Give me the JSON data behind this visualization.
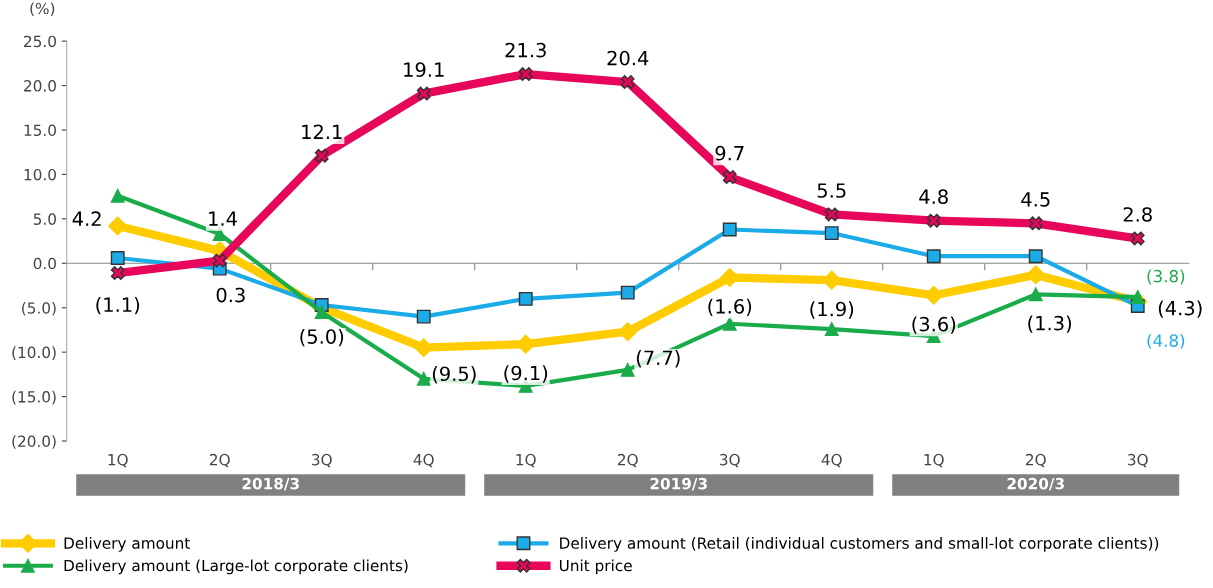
{
  "chart_data": {
    "type": "line",
    "ylabel": "(%)",
    "categories": [
      "1Q",
      "2Q",
      "3Q",
      "4Q",
      "1Q",
      "2Q",
      "3Q",
      "4Q",
      "1Q",
      "2Q",
      "3Q"
    ],
    "ylim": [
      -20,
      25
    ],
    "yticks": [
      {
        "value": -20,
        "label": "(20.0)"
      },
      {
        "value": -15,
        "label": "(15.0)"
      },
      {
        "value": -10,
        "label": "(10.0)"
      },
      {
        "value": -5,
        "label": "(5.0)"
      },
      {
        "value": 0,
        "label": "0.0"
      },
      {
        "value": 5,
        "label": "5.0"
      },
      {
        "value": 10,
        "label": "10.0"
      },
      {
        "value": 15,
        "label": "15.0"
      },
      {
        "value": 20,
        "label": "20.0"
      },
      {
        "value": 25,
        "label": "25.0"
      }
    ],
    "legend": "bottom",
    "annotations": [
      "2018/3",
      "2019/3",
      "2020/3"
    ],
    "series": [
      {
        "name": "Delivery amount",
        "color": "#ffcc00",
        "marker": "diamond",
        "values": [
          4.2,
          1.4,
          -5.0,
          -9.5,
          -9.1,
          -7.7,
          -1.6,
          -1.9,
          -3.6,
          -1.3,
          -4.3
        ],
        "value_labels": [
          "4.2",
          "1.4",
          "(5.0)",
          "(9.5)",
          "(9.1)",
          "(7.7)",
          "(1.6)",
          "(1.9)",
          "(3.6)",
          "(1.3)",
          "(4.3)"
        ]
      },
      {
        "name": "Delivery amount (Retail (individual customers and small-lot corporate clients))",
        "color": "#1aabe8",
        "marker": "square",
        "values": [
          0.6,
          -0.6,
          -4.7,
          -6.0,
          -4.0,
          -3.3,
          3.8,
          3.4,
          0.8,
          0.8,
          -4.8
        ],
        "value_labels": [
          null,
          null,
          null,
          null,
          null,
          null,
          null,
          null,
          null,
          null,
          "(4.8)"
        ]
      },
      {
        "name": "Delivery amount (Large-lot corporate clients)",
        "color": "#1aab4b",
        "marker": "triangle",
        "values": [
          7.6,
          3.3,
          -5.5,
          -13.0,
          -13.8,
          -12.0,
          -6.8,
          -7.4,
          -8.2,
          -3.5,
          -3.8
        ],
        "value_labels": [
          null,
          null,
          null,
          null,
          null,
          null,
          null,
          null,
          null,
          null,
          "(3.8)"
        ]
      },
      {
        "name": "Unit price",
        "color": "#e8065a",
        "marker": "cross",
        "values": [
          -1.1,
          0.3,
          12.1,
          19.1,
          21.3,
          20.4,
          9.7,
          5.5,
          4.8,
          4.5,
          2.8
        ],
        "value_labels": [
          "(1.1)",
          "0.3",
          "12.1",
          "19.1",
          "21.3",
          "20.4",
          "9.7",
          "5.5",
          "4.8",
          "4.5",
          "2.8"
        ]
      }
    ]
  }
}
